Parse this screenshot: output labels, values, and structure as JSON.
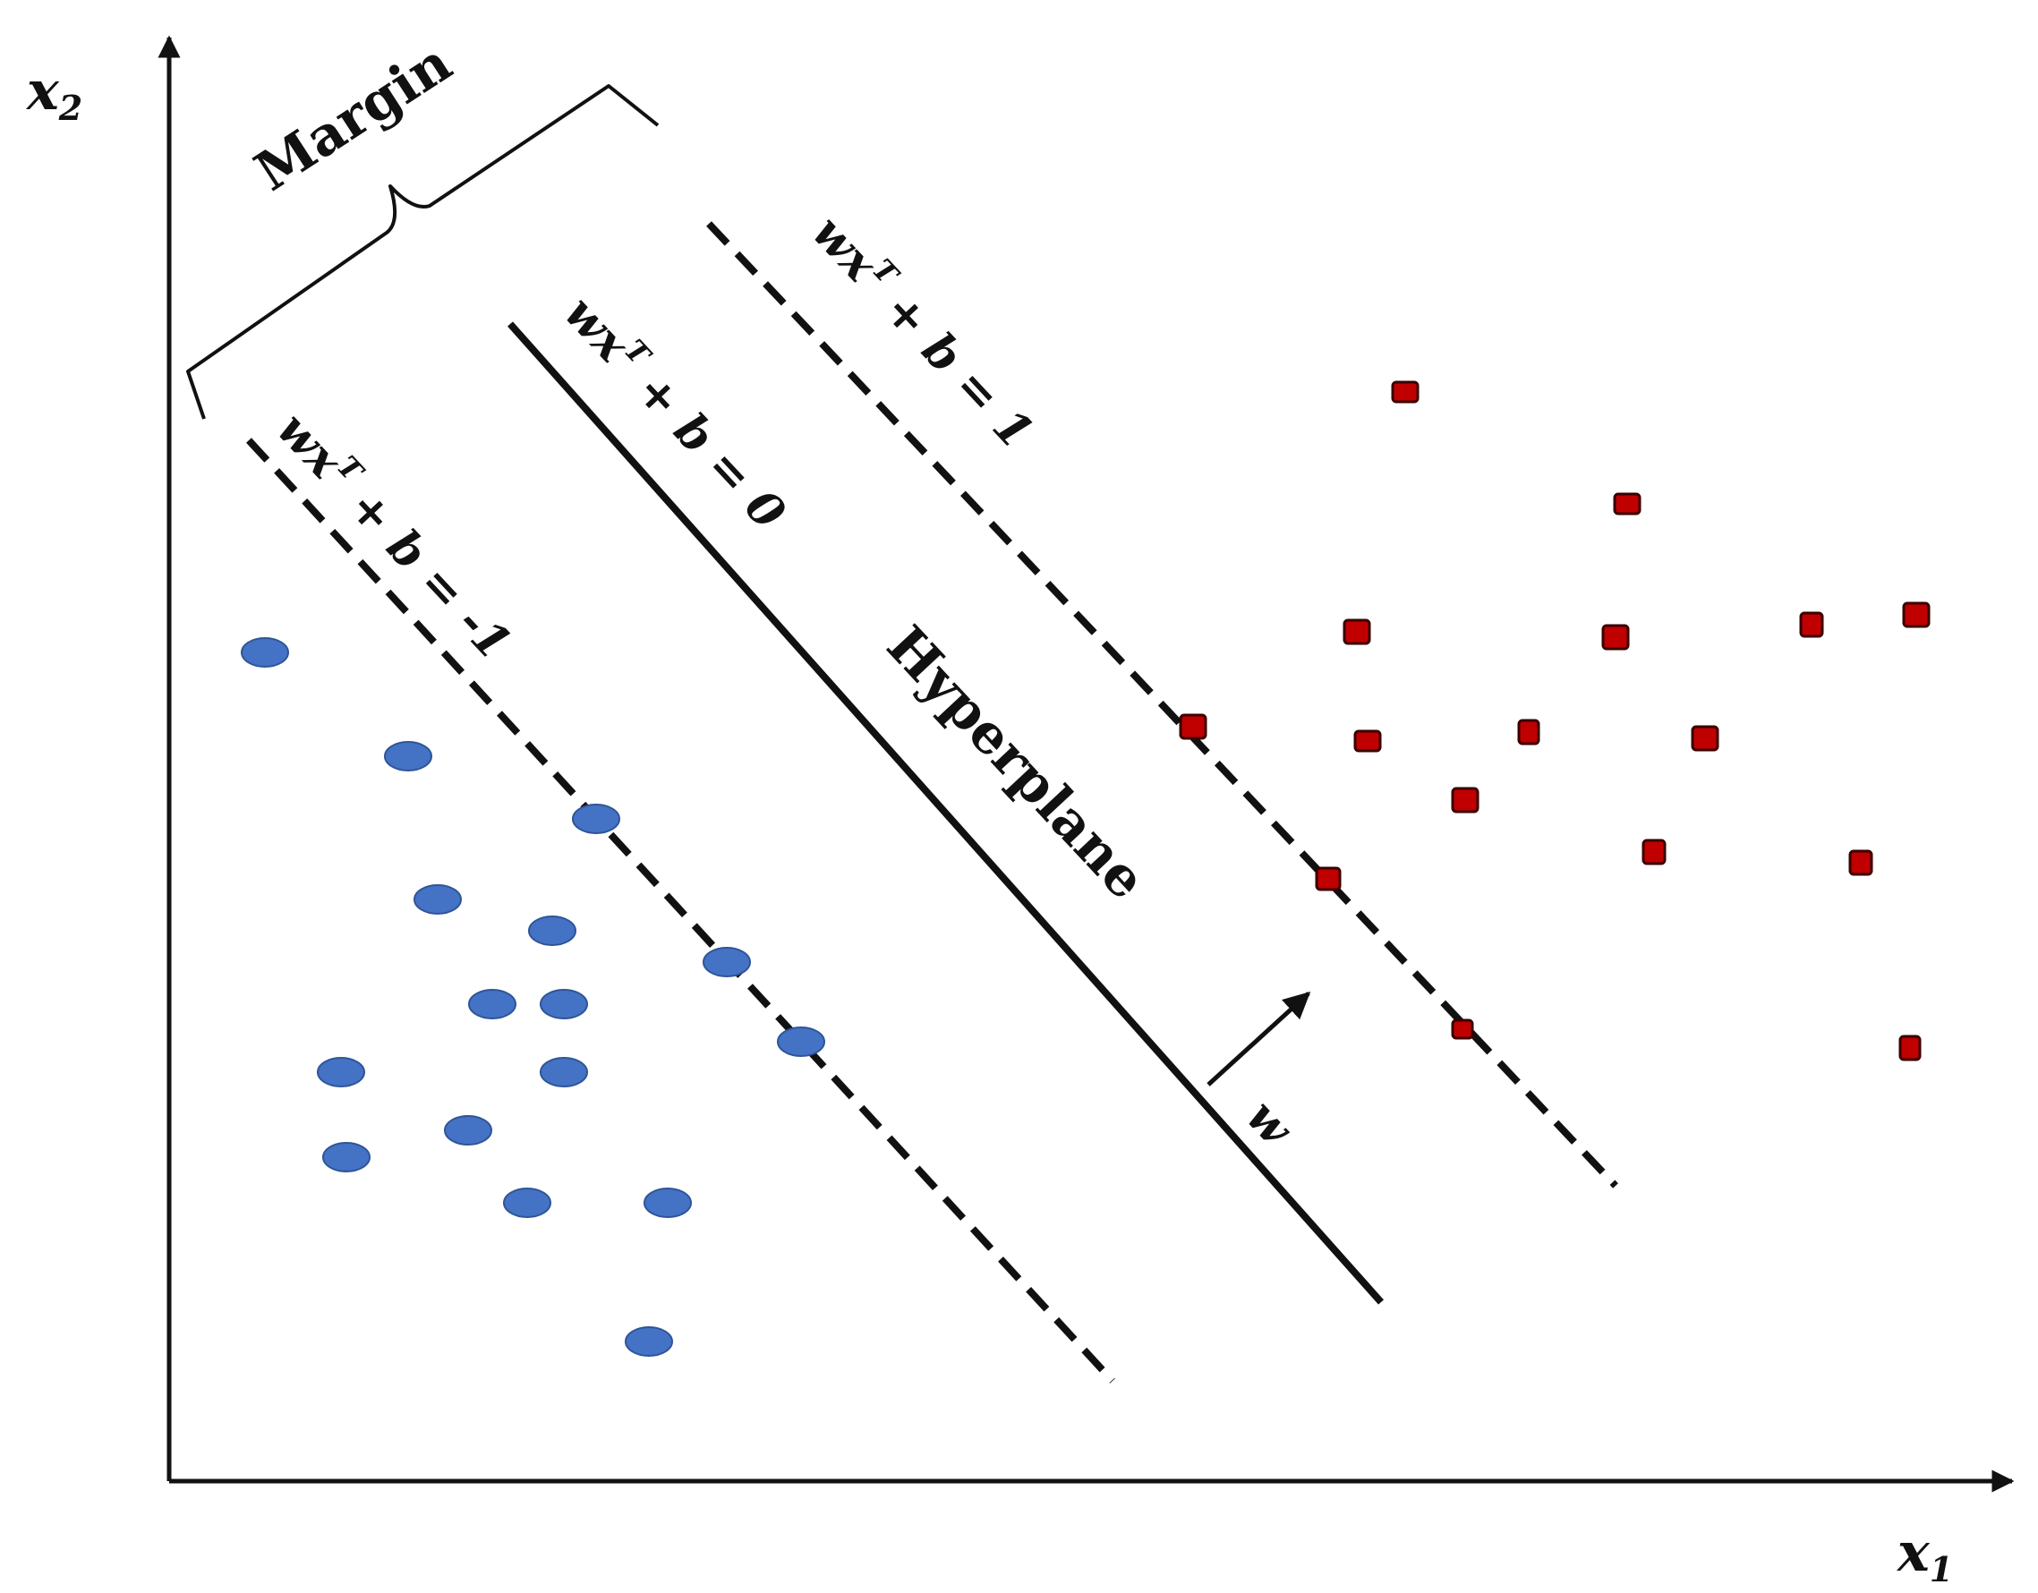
{
  "axes": {
    "x_label": "x",
    "x_subscript": "1",
    "y_label": "x",
    "y_subscript": "2"
  },
  "labels": {
    "margin": "Margin",
    "hyperplane": "Hyperplane",
    "weight_vector": "w"
  },
  "lines": {
    "upper": {
      "lhs": "wx",
      "sup": "T",
      "rhs": " + b = 1"
    },
    "center": {
      "lhs": "wx",
      "sup": "T",
      "rhs": " + b = 0"
    },
    "lower": {
      "lhs": "wx",
      "sup": "T",
      "rhs": " + b = -1"
    }
  },
  "colors": {
    "class_circle_fill": "#4472C4",
    "class_circle_stroke": "#2F5597",
    "class_square_fill": "#C00000",
    "class_square_stroke": "#3A0000",
    "line": "#111111"
  },
  "icons": {
    "circle_class": "blue-ellipse",
    "square_class": "red-rounded-square",
    "w_arrow": "arrow-up-right"
  }
}
